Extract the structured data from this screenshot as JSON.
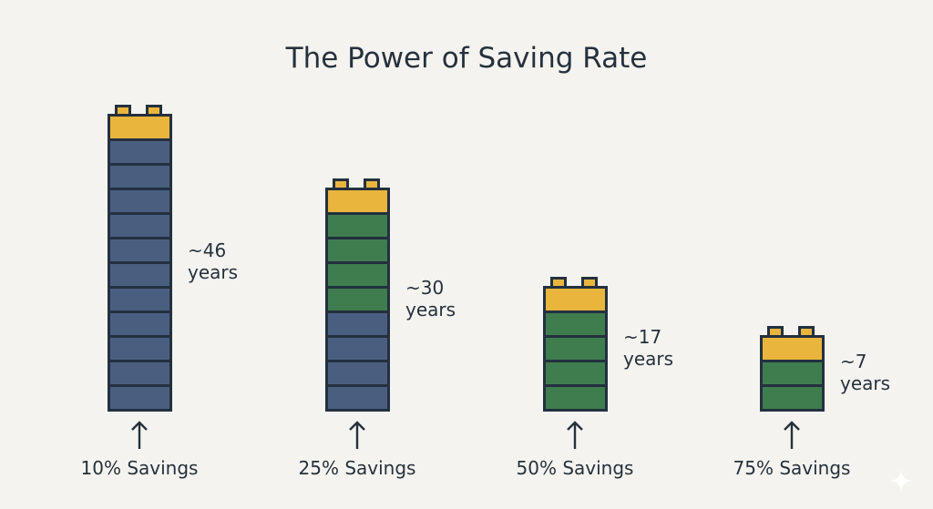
{
  "title": "The Power of Saving Rate",
  "colors": {
    "cap": "#e9b53d",
    "remaining": "#4a5f80",
    "saved": "#3f7d4f",
    "outline": "#23303f",
    "background": "#f4f3ef"
  },
  "icons": {
    "arrow": "arrow-up-icon",
    "watermark": "sparkle-icon"
  },
  "stacks": [
    {
      "label": "10% Savings",
      "years_text": "~46",
      "years_unit": "years",
      "saved_blocks": 0,
      "remaining_blocks": 11
    },
    {
      "label": "25% Savings",
      "years_text": "~30",
      "years_unit": "years",
      "saved_blocks": 4,
      "remaining_blocks": 4
    },
    {
      "label": "50% Savings",
      "years_text": "~17",
      "years_unit": "years",
      "saved_blocks": 4,
      "remaining_blocks": 0
    },
    {
      "label": "75% Savings",
      "years_text": "~7",
      "years_unit": "years",
      "saved_blocks": 2,
      "remaining_blocks": 0
    }
  ]
}
